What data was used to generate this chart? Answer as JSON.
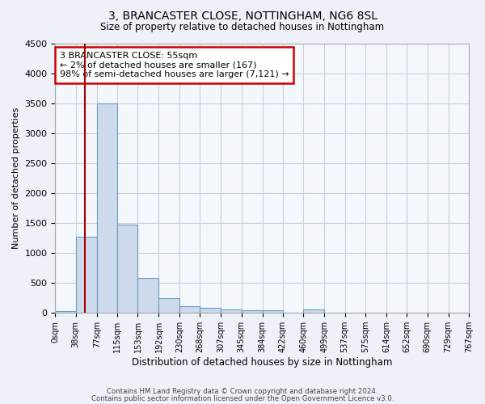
{
  "title1": "3, BRANCASTER CLOSE, NOTTINGHAM, NG6 8SL",
  "title2": "Size of property relative to detached houses in Nottingham",
  "xlabel": "Distribution of detached houses by size in Nottingham",
  "ylabel": "Number of detached properties",
  "bar_color": "#ccdaeb",
  "bar_edge_color": "#6a9cbf",
  "bar_heights": [
    30,
    1270,
    3500,
    1480,
    580,
    240,
    110,
    80,
    55,
    40,
    40,
    0,
    55,
    0,
    0,
    0,
    0,
    0,
    0,
    0
  ],
  "bin_edges": [
    0,
    38,
    77,
    115,
    153,
    192,
    230,
    268,
    307,
    345,
    384,
    422,
    460,
    499,
    537,
    575,
    614,
    652,
    690,
    729,
    767
  ],
  "bin_labels": [
    "0sqm",
    "38sqm",
    "77sqm",
    "115sqm",
    "153sqm",
    "192sqm",
    "230sqm",
    "268sqm",
    "307sqm",
    "345sqm",
    "384sqm",
    "422sqm",
    "460sqm",
    "499sqm",
    "537sqm",
    "575sqm",
    "614sqm",
    "652sqm",
    "690sqm",
    "729sqm",
    "767sqm"
  ],
  "ylim": [
    0,
    4500
  ],
  "yticks": [
    0,
    500,
    1000,
    1500,
    2000,
    2500,
    3000,
    3500,
    4000,
    4500
  ],
  "property_sqm": 55,
  "annotation_line1": "3 BRANCASTER CLOSE: 55sqm",
  "annotation_line2": "← 2% of detached houses are smaller (167)",
  "annotation_line3": "98% of semi-detached houses are larger (7,121) →",
  "annotation_box_color": "#ffffff",
  "annotation_border_color": "#cc0000",
  "vline_color": "#aa0000",
  "footer1": "Contains HM Land Registry data © Crown copyright and database right 2024.",
  "footer2": "Contains public sector information licensed under the Open Government Licence v3.0.",
  "bg_color": "#eef2f8",
  "plot_bg_color": "#f4f7fb",
  "grid_color": "#c8d0dc"
}
